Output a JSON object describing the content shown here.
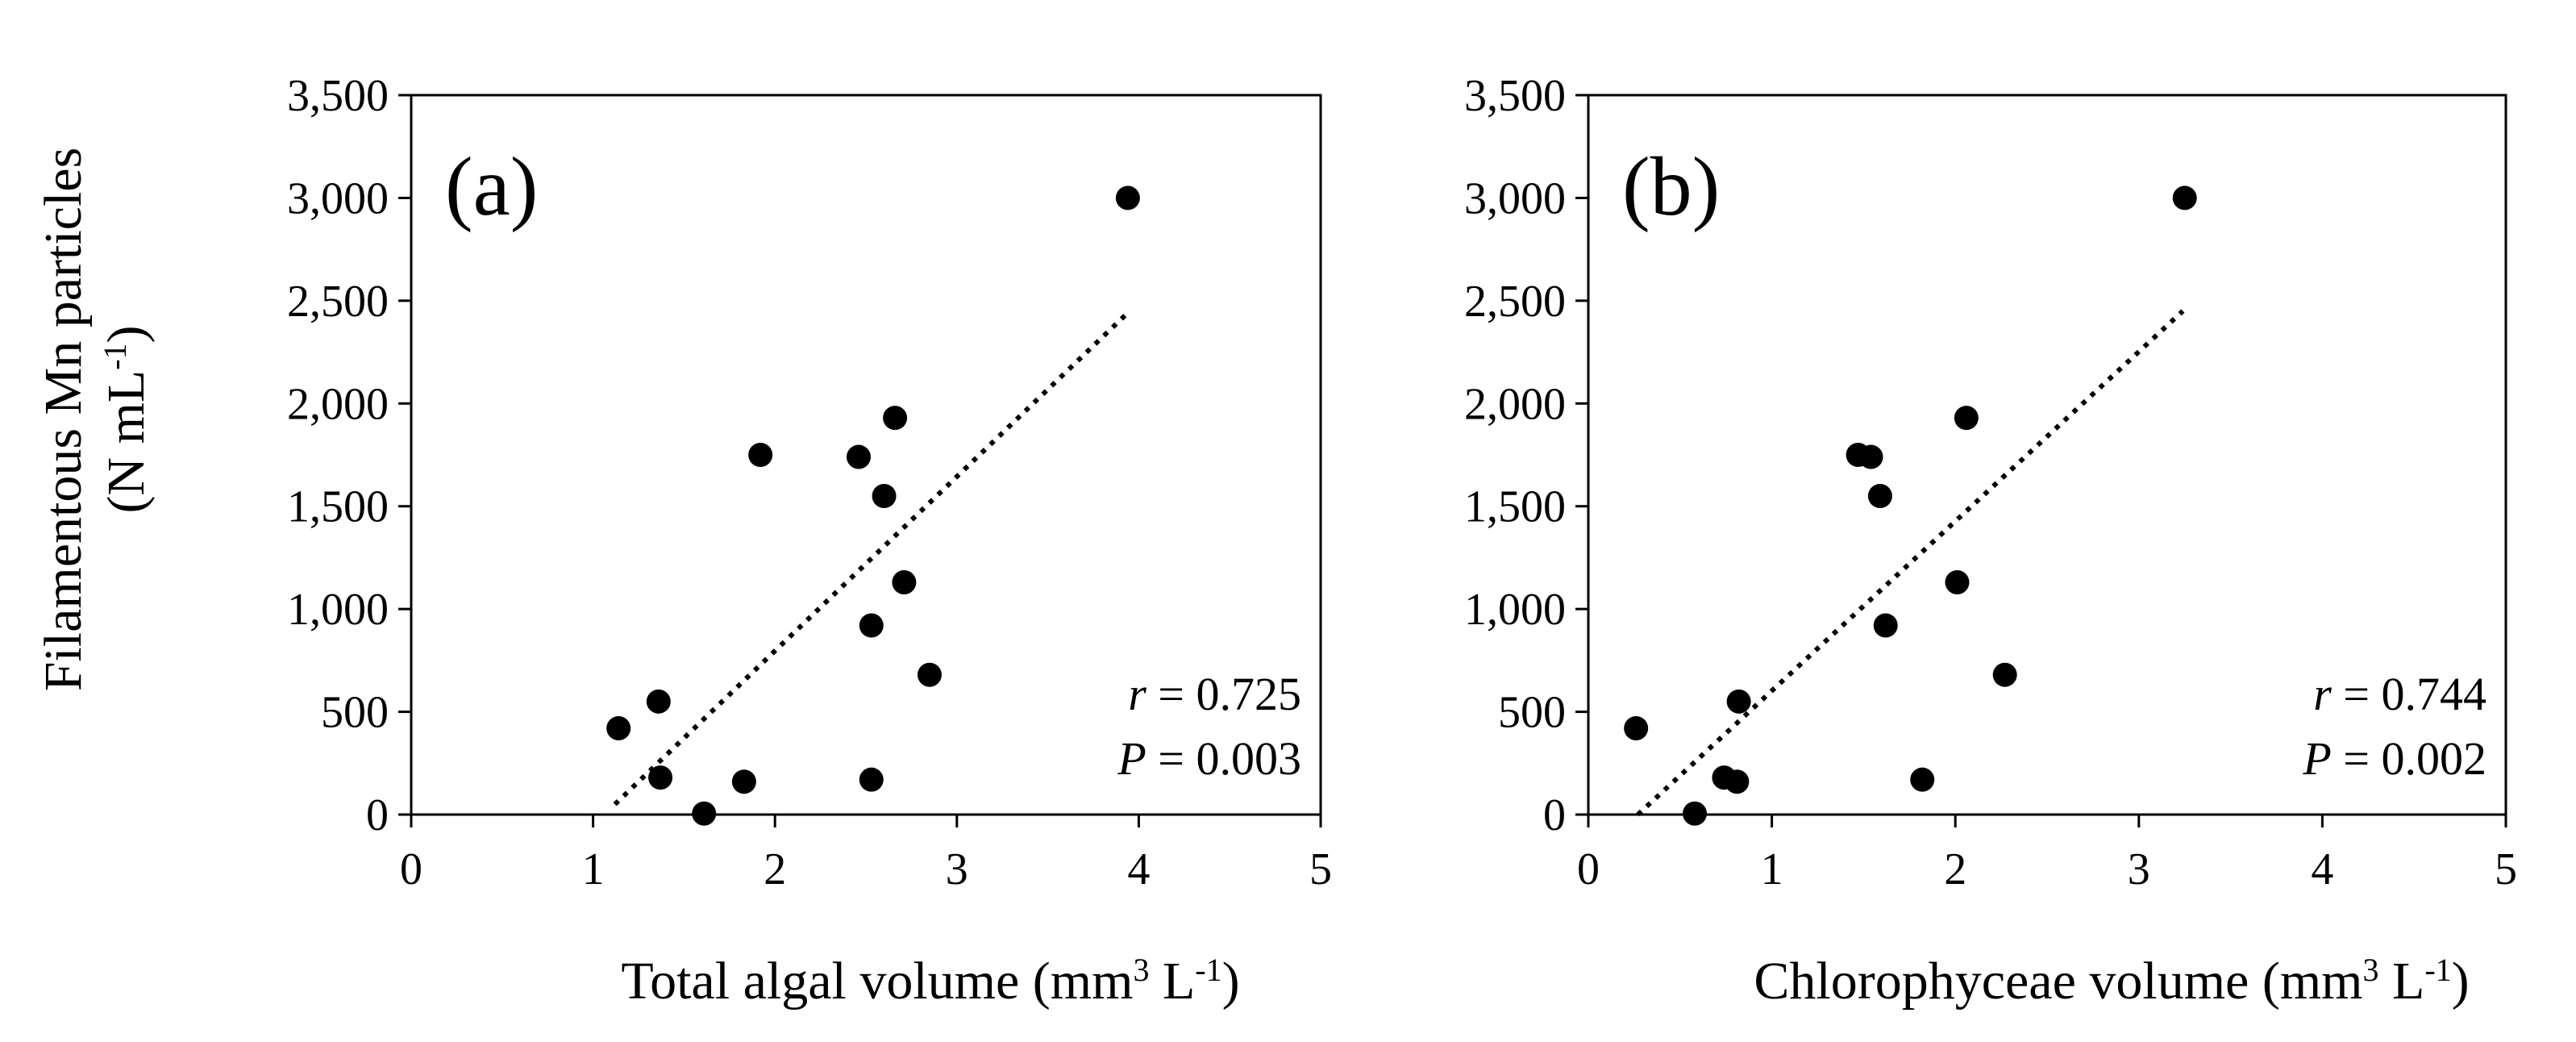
{
  "figure": {
    "y_axis_title_line1": "Filamentous  Mn particles",
    "y_axis_title_line2_main": "(N mL",
    "y_axis_title_line2_sup": "-1",
    "y_axis_title_line2_end": ")"
  },
  "chart_data": [
    {
      "type": "scatter",
      "panel_label": "(a)",
      "xlabel_main": "Total algal  volume  (mm",
      "xlabel_sup1": "3",
      "xlabel_mid": " L",
      "xlabel_sup2": "-1",
      "xlabel_end": ")",
      "ylabel": "Filamentous Mn particles (N mL-1)",
      "xlim": [
        0,
        5
      ],
      "ylim": [
        0,
        3500
      ],
      "x_ticks": [
        0,
        1,
        2,
        3,
        4,
        5
      ],
      "x_tick_labels": [
        "0",
        "1",
        "2",
        "3",
        "4",
        "5"
      ],
      "y_ticks": [
        0,
        500,
        1000,
        1500,
        2000,
        2500,
        3000,
        3500
      ],
      "y_tick_labels": [
        "0",
        "500",
        "1,000",
        "1,500",
        "2,000",
        "2,500",
        "3,000",
        "3,500"
      ],
      "points": [
        {
          "x": 1.14,
          "y": 420
        },
        {
          "x": 1.36,
          "y": 550
        },
        {
          "x": 1.37,
          "y": 180
        },
        {
          "x": 1.61,
          "y": 5
        },
        {
          "x": 1.83,
          "y": 160
        },
        {
          "x": 1.92,
          "y": 1750
        },
        {
          "x": 2.46,
          "y": 1740
        },
        {
          "x": 2.53,
          "y": 920
        },
        {
          "x": 2.53,
          "y": 170
        },
        {
          "x": 2.6,
          "y": 1550
        },
        {
          "x": 2.66,
          "y": 1930
        },
        {
          "x": 2.71,
          "y": 1130
        },
        {
          "x": 2.85,
          "y": 680
        },
        {
          "x": 3.94,
          "y": 3000
        }
      ],
      "trendline": {
        "x0": 1.12,
        "y0": 50,
        "x1": 3.95,
        "y1": 2450
      },
      "stat_r_symbol": "r",
      "stat_r_value": " = 0.725",
      "stat_p_symbol": "P",
      "stat_p_value": " = 0.003"
    },
    {
      "type": "scatter",
      "panel_label": "(b)",
      "xlabel_main": "Chlorophyceae  volume  (mm",
      "xlabel_sup1": "3",
      "xlabel_mid": " L",
      "xlabel_sup2": "-1",
      "xlabel_end": ")",
      "ylabel": "Filamentous Mn particles (N mL-1)",
      "xlim": [
        0,
        5
      ],
      "ylim": [
        0,
        3500
      ],
      "x_ticks": [
        0,
        1,
        2,
        3,
        4,
        5
      ],
      "x_tick_labels": [
        "0",
        "1",
        "2",
        "3",
        "4",
        "5"
      ],
      "y_ticks": [
        0,
        500,
        1000,
        1500,
        2000,
        2500,
        3000,
        3500
      ],
      "y_tick_labels": [
        "0",
        "500",
        "1,000",
        "1,500",
        "2,000",
        "2,500",
        "3,000",
        "3,500"
      ],
      "points": [
        {
          "x": 0.26,
          "y": 420
        },
        {
          "x": 0.58,
          "y": 5
        },
        {
          "x": 0.74,
          "y": 180
        },
        {
          "x": 0.81,
          "y": 160
        },
        {
          "x": 0.82,
          "y": 550
        },
        {
          "x": 1.47,
          "y": 1750
        },
        {
          "x": 1.54,
          "y": 1740
        },
        {
          "x": 1.59,
          "y": 1550
        },
        {
          "x": 1.62,
          "y": 920
        },
        {
          "x": 1.82,
          "y": 170
        },
        {
          "x": 2.01,
          "y": 1130
        },
        {
          "x": 2.06,
          "y": 1930
        },
        {
          "x": 2.27,
          "y": 680
        },
        {
          "x": 3.25,
          "y": 3000
        }
      ],
      "trendline": {
        "x0": 0.27,
        "y0": 0,
        "x1": 3.24,
        "y1": 2450
      },
      "stat_r_symbol": "r",
      "stat_r_value": " = 0.744",
      "stat_p_symbol": "P",
      "stat_p_value": " = 0.002"
    }
  ]
}
